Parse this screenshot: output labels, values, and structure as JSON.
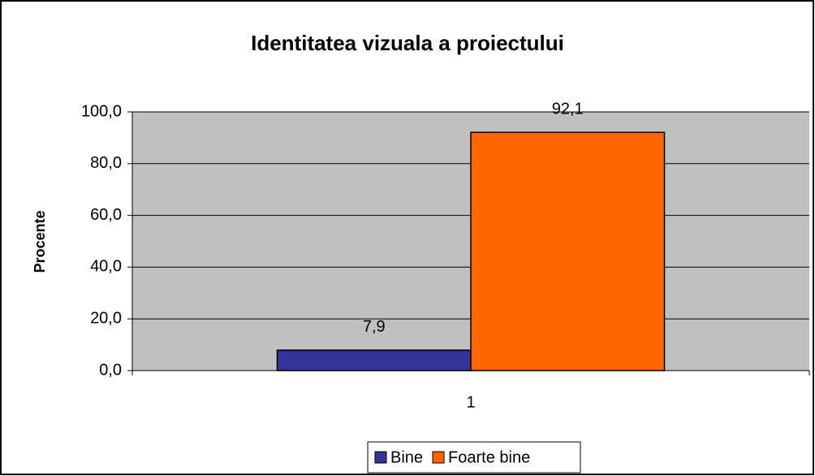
{
  "chart_data": {
    "type": "bar",
    "title": "Identitatea vizuala a proiectului",
    "ylabel": "Procente",
    "categories": [
      "1"
    ],
    "series": [
      {
        "name": "Bine",
        "color": "#333399",
        "values": [
          7.9
        ],
        "value_labels": [
          "7,9"
        ]
      },
      {
        "name": "Foarte bine",
        "color": "#FF6600",
        "values": [
          92.1
        ],
        "value_labels": [
          "92,1"
        ]
      }
    ],
    "ylim": [
      0,
      100
    ],
    "yticks": [
      {
        "value": 0,
        "label": "0,0"
      },
      {
        "value": 20,
        "label": "20,0"
      },
      {
        "value": 40,
        "label": "40,0"
      },
      {
        "value": 60,
        "label": "60,0"
      },
      {
        "value": 80,
        "label": "80,0"
      },
      {
        "value": 100,
        "label": "100,0"
      }
    ],
    "grid": true,
    "plot_background": "#C0C0C0",
    "legend": "bottom"
  }
}
